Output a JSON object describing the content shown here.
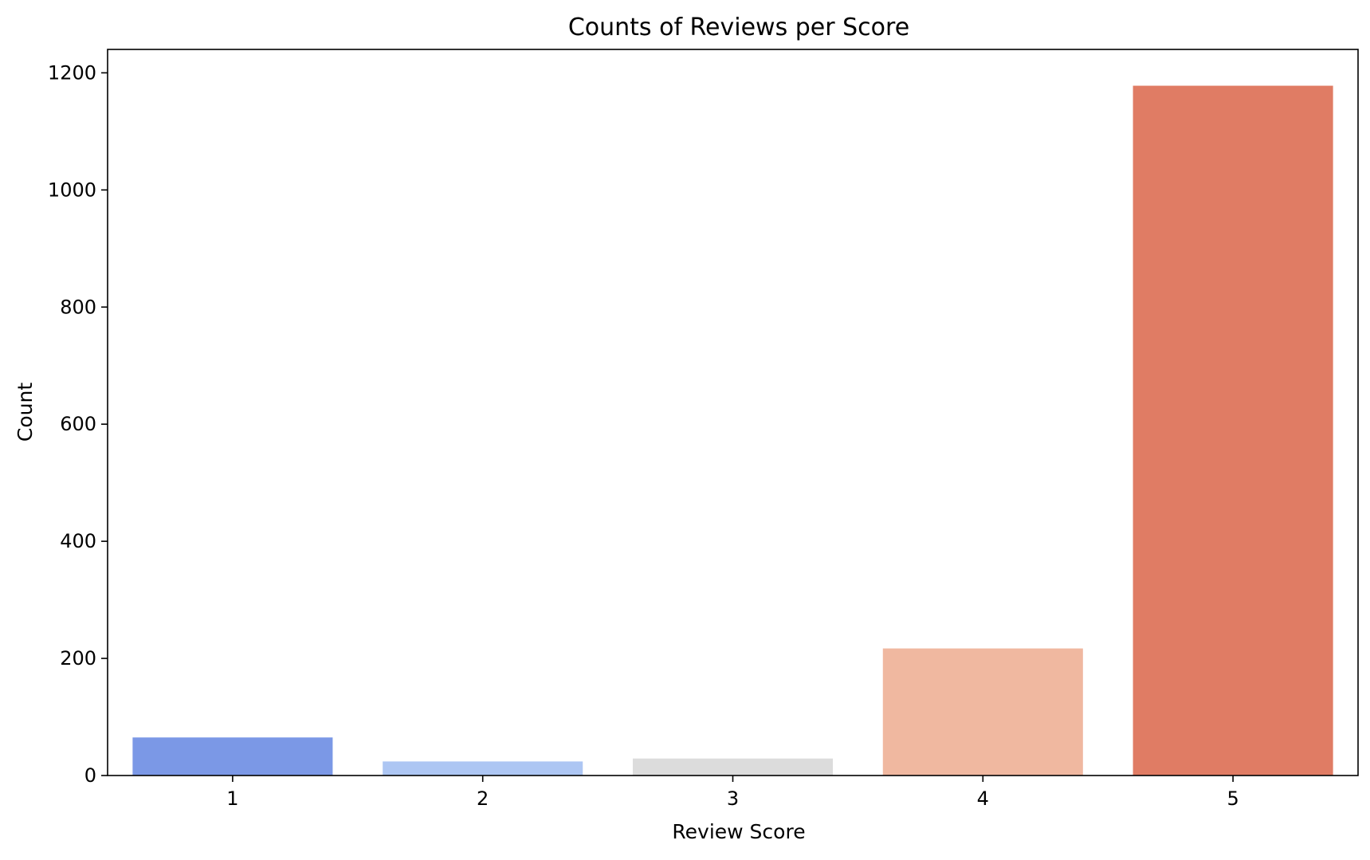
{
  "chart_data": {
    "type": "bar",
    "title": "Counts of Reviews per Score",
    "xlabel": "Review Score",
    "ylabel": "Count",
    "categories": [
      "1",
      "2",
      "3",
      "4",
      "5"
    ],
    "values": [
      65,
      24,
      29,
      217,
      1178
    ],
    "colors": [
      "#7b98e6",
      "#adc6f3",
      "#dcdcdc",
      "#f0b8a0",
      "#e07c64"
    ],
    "ylim": [
      0,
      1240
    ],
    "yticks": [
      0,
      200,
      400,
      600,
      800,
      1000,
      1200
    ],
    "grid": false,
    "legend": "none"
  }
}
